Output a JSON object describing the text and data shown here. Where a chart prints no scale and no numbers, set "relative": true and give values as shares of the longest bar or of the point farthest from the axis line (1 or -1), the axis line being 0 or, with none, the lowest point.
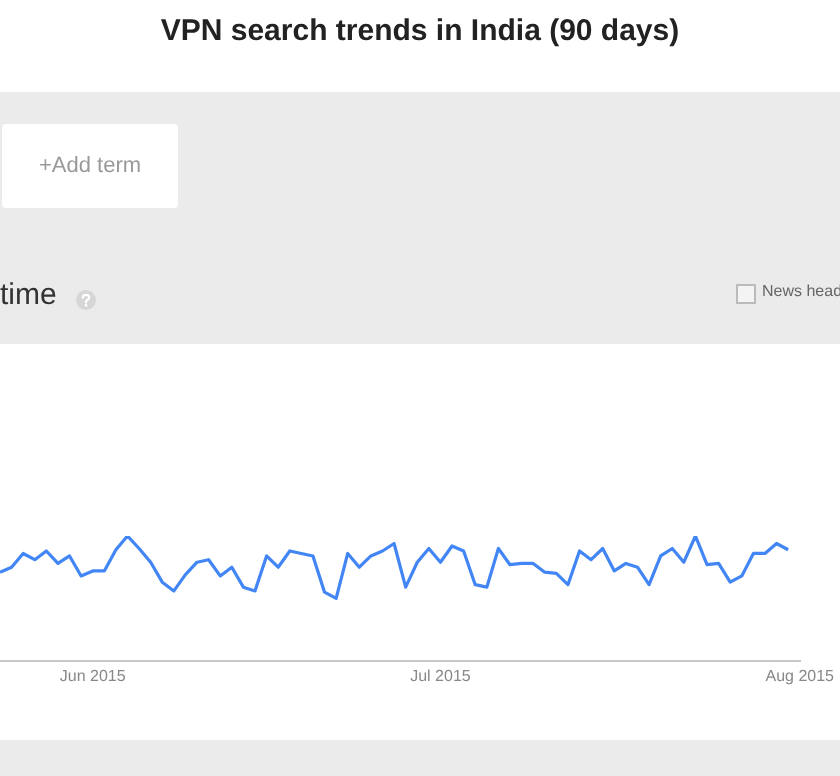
{
  "chart_data": {
    "type": "line",
    "title": "VPN search trends in India (90 days)",
    "annotations": [
      "+Add term",
      "time",
      "News head"
    ],
    "relative": true,
    "xlim": [
      "2015-05-24",
      "2015-08-01"
    ],
    "xticks": [
      {
        "value": "2015-06-01",
        "label": "Jun 2015"
      },
      {
        "value": "2015-07-01",
        "label": "Jul 2015"
      },
      {
        "value": "2015-08-01",
        "label": "Aug 2015"
      }
    ],
    "x": [
      "2015-05-24",
      "2015-05-25",
      "2015-05-26",
      "2015-05-27",
      "2015-05-28",
      "2015-05-29",
      "2015-05-30",
      "2015-05-31",
      "2015-06-01",
      "2015-06-02",
      "2015-06-03",
      "2015-06-04",
      "2015-06-05",
      "2015-06-06",
      "2015-06-07",
      "2015-06-08",
      "2015-06-09",
      "2015-06-10",
      "2015-06-11",
      "2015-06-12",
      "2015-06-13",
      "2015-06-14",
      "2015-06-15",
      "2015-06-16",
      "2015-06-17",
      "2015-06-18",
      "2015-06-19",
      "2015-06-20",
      "2015-06-21",
      "2015-06-22",
      "2015-06-23",
      "2015-06-24",
      "2015-06-25",
      "2015-06-26",
      "2015-06-27",
      "2015-06-28",
      "2015-06-29",
      "2015-06-30",
      "2015-07-01",
      "2015-07-02",
      "2015-07-03",
      "2015-07-04",
      "2015-07-05",
      "2015-07-06",
      "2015-07-07",
      "2015-07-08",
      "2015-07-09",
      "2015-07-10",
      "2015-07-11",
      "2015-07-12",
      "2015-07-13",
      "2015-07-14",
      "2015-07-15",
      "2015-07-16",
      "2015-07-17",
      "2015-07-18",
      "2015-07-19",
      "2015-07-20",
      "2015-07-21",
      "2015-07-22",
      "2015-07-23",
      "2015-07-24",
      "2015-07-25",
      "2015-07-26",
      "2015-07-27",
      "2015-07-28",
      "2015-07-29",
      "2015-07-30",
      "2015-07-31"
    ],
    "series": [
      {
        "color": "#4285f4",
        "values": [
          0.71,
          0.75,
          0.86,
          0.81,
          0.88,
          0.78,
          0.84,
          0.68,
          0.72,
          0.72,
          0.89,
          1,
          0.9,
          0.79,
          0.63,
          0.56,
          0.69,
          0.79,
          0.81,
          0.68,
          0.75,
          0.59,
          0.56,
          0.84,
          0.75,
          0.88,
          0.86,
          0.84,
          0.55,
          0.5,
          0.86,
          0.75,
          0.84,
          0.88,
          0.94,
          0.59,
          0.79,
          0.9,
          0.79,
          0.92,
          0.88,
          0.61,
          0.59,
          0.9,
          0.77,
          0.78,
          0.78,
          0.71,
          0.7,
          0.61,
          0.88,
          0.81,
          0.9,
          0.72,
          0.78,
          0.75,
          0.61,
          0.84,
          0.9,
          0.79,
          1,
          0.77,
          0.78,
          0.63,
          0.68,
          0.86,
          0.86,
          0.94,
          0.89
        ]
      }
    ]
  }
}
